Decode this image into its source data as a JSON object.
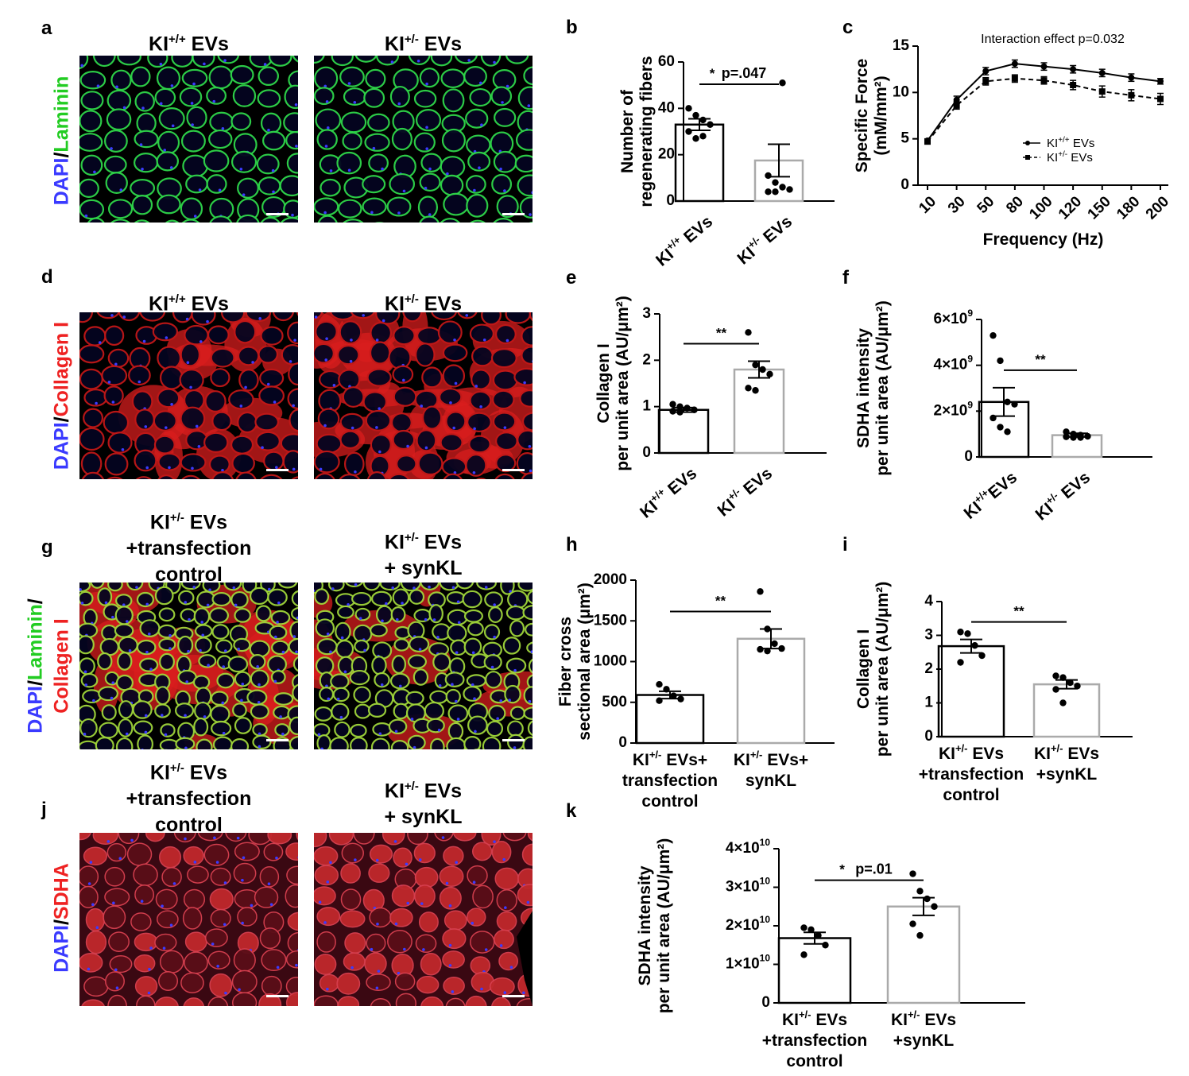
{
  "panels": {
    "a": {
      "letter": "a",
      "title1": "KI",
      "sup1": "+/+",
      "suf1": " EVs",
      "title2": "KI",
      "sup2": "+/-",
      "suf2": " EVs",
      "stain": [
        {
          "t": "DAPI",
          "c": "#3a3aff"
        },
        {
          "t": "/",
          "c": "#000"
        },
        {
          "t": "Laminin",
          "c": "#22cc22"
        }
      ]
    },
    "d": {
      "letter": "d",
      "title1": "KI",
      "sup1": "+/+",
      "suf1": " EVs",
      "title2": "KI",
      "sup2": "+/-",
      "suf2": " EVs",
      "stain": [
        {
          "t": "DAPI",
          "c": "#3a3aff"
        },
        {
          "t": "/",
          "c": "#000"
        },
        {
          "t": "Collagen I",
          "c": "#ee2222"
        }
      ]
    },
    "g": {
      "letter": "g",
      "t1l1": "KI",
      "t1sup": "+/-",
      "t1suf": " EVs",
      "t1l2": "+transfection",
      "t1l3": "control",
      "t2l1": "KI",
      "t2sup": "+/-",
      "t2suf": " EVs",
      "t2l2": "+ synKL",
      "stainA": [
        {
          "t": "DAPI",
          "c": "#3a3aff"
        },
        {
          "t": "/",
          "c": "#000"
        },
        {
          "t": "Laminin",
          "c": "#22cc22"
        },
        {
          "t": "/",
          "c": "#000"
        }
      ],
      "stainB": [
        {
          "t": "Collagen I",
          "c": "#ee2222"
        }
      ]
    },
    "j": {
      "letter": "j",
      "t1l1": "KI",
      "t1sup": "+/-",
      "t1suf": " EVs",
      "t1l2": "+transfection",
      "t1l3": "control",
      "t2l1": "KI",
      "t2sup": "+/-",
      "t2suf": " EVs",
      "t2l2": "+ synKL",
      "stain": [
        {
          "t": "DAPI",
          "c": "#3a3aff"
        },
        {
          "t": "/",
          "c": "#000"
        },
        {
          "t": "SDHA",
          "c": "#ee2222"
        }
      ]
    }
  },
  "chart_data": [
    {
      "id": "b",
      "type": "bar",
      "letter": "b",
      "ylabel_lines": [
        "Number of",
        "regenerating fibers"
      ],
      "ylim": [
        0,
        60
      ],
      "yticks": [
        {
          "v": 0,
          "l": "0"
        },
        {
          "v": 20,
          "l": "20"
        },
        {
          "v": 40,
          "l": "40"
        },
        {
          "v": 60,
          "l": "60"
        }
      ],
      "categories": [
        {
          "main": "KI",
          "sup": "+/+",
          "suf": " EVs",
          "rot": true
        },
        {
          "main": "KI",
          "sup": "+/-",
          "suf": " EVs",
          "rot": true
        }
      ],
      "values": [
        33,
        17.5
      ],
      "errors": [
        2.5,
        7
      ],
      "points": [
        [
          40,
          37,
          35,
          33,
          30,
          27,
          28
        ],
        [
          11,
          8,
          6,
          5,
          4,
          4,
          51
        ]
      ],
      "sig": "p=.047",
      "sigstar": "*"
    },
    {
      "id": "c",
      "type": "line",
      "letter": "c",
      "ylabel_lines": [
        "Specific Force",
        "(mM/mm²)"
      ],
      "xlabel": "Frequency (Hz)",
      "ylim": [
        0,
        15
      ],
      "yticks": [
        {
          "v": 0,
          "l": "0"
        },
        {
          "v": 5,
          "l": "5"
        },
        {
          "v": 10,
          "l": "10"
        },
        {
          "v": 15,
          "l": "15"
        }
      ],
      "x": [
        "10",
        "30",
        "50",
        "80",
        "100",
        "120",
        "150",
        "180",
        "200"
      ],
      "series": [
        {
          "name": "KI",
          "sup": "+/+",
          "suf": " EVs",
          "values": [
            4.8,
            9.2,
            12.3,
            13.1,
            12.8,
            12.5,
            12.1,
            11.6,
            11.2
          ],
          "errors": [
            0.2,
            0.4,
            0.4,
            0.4,
            0.4,
            0.4,
            0.4,
            0.4,
            0.3
          ]
        },
        {
          "name": "KI",
          "sup": "+/-",
          "suf": " EVs",
          "values": [
            4.7,
            8.6,
            11.2,
            11.5,
            11.3,
            10.8,
            10.1,
            9.7,
            9.3
          ],
          "errors": [
            0.2,
            0.4,
            0.4,
            0.4,
            0.4,
            0.5,
            0.6,
            0.6,
            0.6
          ]
        }
      ],
      "annotation": "Interaction effect p=0.032"
    },
    {
      "id": "e",
      "type": "bar",
      "letter": "e",
      "ylabel_lines": [
        "Collagen I",
        "per unit area  (AU/μm²)"
      ],
      "ylim": [
        0,
        3
      ],
      "yticks": [
        {
          "v": 0,
          "l": "0"
        },
        {
          "v": 1,
          "l": "1"
        },
        {
          "v": 2,
          "l": "2"
        },
        {
          "v": 3,
          "l": "3"
        }
      ],
      "categories": [
        {
          "main": "KI",
          "sup": "+/+",
          "suf": " EVs",
          "rot": true
        },
        {
          "main": "KI",
          "sup": "+/-",
          "suf": " EVs",
          "rot": true
        }
      ],
      "values": [
        0.93,
        1.8
      ],
      "errors": [
        0.05,
        0.18
      ],
      "points": [
        [
          1.05,
          1.0,
          0.97,
          0.93,
          0.9,
          0.88
        ],
        [
          2.6,
          1.9,
          1.8,
          1.7,
          1.4,
          1.35
        ]
      ],
      "sig": "",
      "sigstar": "**"
    },
    {
      "id": "f",
      "type": "bar",
      "letter": "f",
      "ylabel_lines": [
        "SDHA intensity",
        "per unit area (AU/μm²)"
      ],
      "ylim": [
        0,
        6
      ],
      "yticks": [
        {
          "v": 0,
          "l": "0"
        },
        {
          "v": 2,
          "l": "2×10",
          "e": "9"
        },
        {
          "v": 4,
          "l": "4×10",
          "e": "9"
        },
        {
          "v": 6,
          "l": "6×10",
          "e": "9"
        }
      ],
      "categories": [
        {
          "main": "KI",
          "sup": "+/+",
          "suf": "EVs",
          "rot": true
        },
        {
          "main": "KI",
          "sup": "+/-",
          "suf": " EVs",
          "rot": true
        }
      ],
      "values": [
        2.4,
        0.95
      ],
      "errors": [
        0.62,
        0.08
      ],
      "points": [
        [
          5.3,
          4.2,
          2.4,
          2.3,
          1.7,
          1.3,
          1.1
        ],
        [
          1.1,
          1.0,
          0.95,
          0.9,
          0.88,
          0.85,
          0.85
        ]
      ],
      "sig": "",
      "sigstar": "**"
    },
    {
      "id": "h",
      "type": "bar",
      "letter": "h",
      "ylabel_lines": [
        "Fiber cross",
        "sectional area (μm²)"
      ],
      "ylim": [
        0,
        2000
      ],
      "yticks": [
        {
          "v": 0,
          "l": "0"
        },
        {
          "v": 500,
          "l": "500"
        },
        {
          "v": 1000,
          "l": "1000"
        },
        {
          "v": 1500,
          "l": "1500"
        },
        {
          "v": 2000,
          "l": "2000"
        }
      ],
      "categories": [
        {
          "lines": [
            {
              "main": "KI",
              "sup": "+/-",
              "suf": " EVs+"
            },
            {
              "text": "transfection"
            },
            {
              "text": "control"
            }
          ]
        },
        {
          "lines": [
            {
              "main": "KI",
              "sup": "+/-",
              "suf": " EVs+"
            },
            {
              "text": "synKL"
            }
          ]
        }
      ],
      "values": [
        590,
        1280
      ],
      "errors": [
        45,
        120
      ],
      "points": [
        [
          720,
          660,
          580,
          540,
          520
        ],
        [
          1860,
          1400,
          1220,
          1160,
          1150,
          1130
        ]
      ],
      "sig": "",
      "sigstar": "**"
    },
    {
      "id": "i",
      "type": "bar",
      "letter": "i",
      "ylabel_lines": [
        "Collagen I",
        "per unit area  (AU/μm²)"
      ],
      "ylim": [
        0,
        4
      ],
      "yticks": [
        {
          "v": 0,
          "l": "0"
        },
        {
          "v": 1,
          "l": "1"
        },
        {
          "v": 2,
          "l": "2"
        },
        {
          "v": 3,
          "l": "3"
        },
        {
          "v": 4,
          "l": "4"
        }
      ],
      "categories": [
        {
          "lines": [
            {
              "main": "KI",
              "sup": "+/-",
              "suf": " EVs"
            },
            {
              "text": "+transfection"
            },
            {
              "text": "control"
            }
          ]
        },
        {
          "lines": [
            {
              "main": "KI",
              "sup": "+/-",
              "suf": " EVs"
            },
            {
              "text": "+synKL"
            }
          ]
        }
      ],
      "values": [
        2.68,
        1.55
      ],
      "errors": [
        0.2,
        0.13
      ],
      "points": [
        [
          3.1,
          3.05,
          2.7,
          2.4,
          2.2
        ],
        [
          1.8,
          1.75,
          1.6,
          1.5,
          1.4,
          1.0
        ]
      ],
      "sig": "",
      "sigstar": "**"
    },
    {
      "id": "k",
      "type": "bar",
      "letter": "k",
      "ylabel_lines": [
        "SDHA intensity",
        "per unit area (AU/μm²)"
      ],
      "ylim": [
        0,
        4
      ],
      "yticks": [
        {
          "v": 0,
          "l": "0"
        },
        {
          "v": 1,
          "l": "1×10",
          "e": "10"
        },
        {
          "v": 2,
          "l": "2×10",
          "e": "10"
        },
        {
          "v": 3,
          "l": "3×10",
          "e": "10"
        },
        {
          "v": 4,
          "l": "4×10",
          "e": "10"
        }
      ],
      "categories": [
        {
          "lines": [
            {
              "main": "KI",
              "sup": "+/-",
              "suf": " EVs"
            },
            {
              "text": "+transfection"
            },
            {
              "text": "control"
            }
          ]
        },
        {
          "lines": [
            {
              "main": "KI",
              "sup": "+/-",
              "suf": " EVs"
            },
            {
              "text": "+synKL"
            }
          ]
        }
      ],
      "values": [
        1.68,
        2.5
      ],
      "errors": [
        0.15,
        0.23
      ],
      "points": [
        [
          1.95,
          1.9,
          1.75,
          1.5,
          1.25
        ],
        [
          3.35,
          2.9,
          2.7,
          2.5,
          2.05,
          1.75
        ]
      ],
      "sig": "p=.01",
      "sigstar": "*"
    }
  ]
}
